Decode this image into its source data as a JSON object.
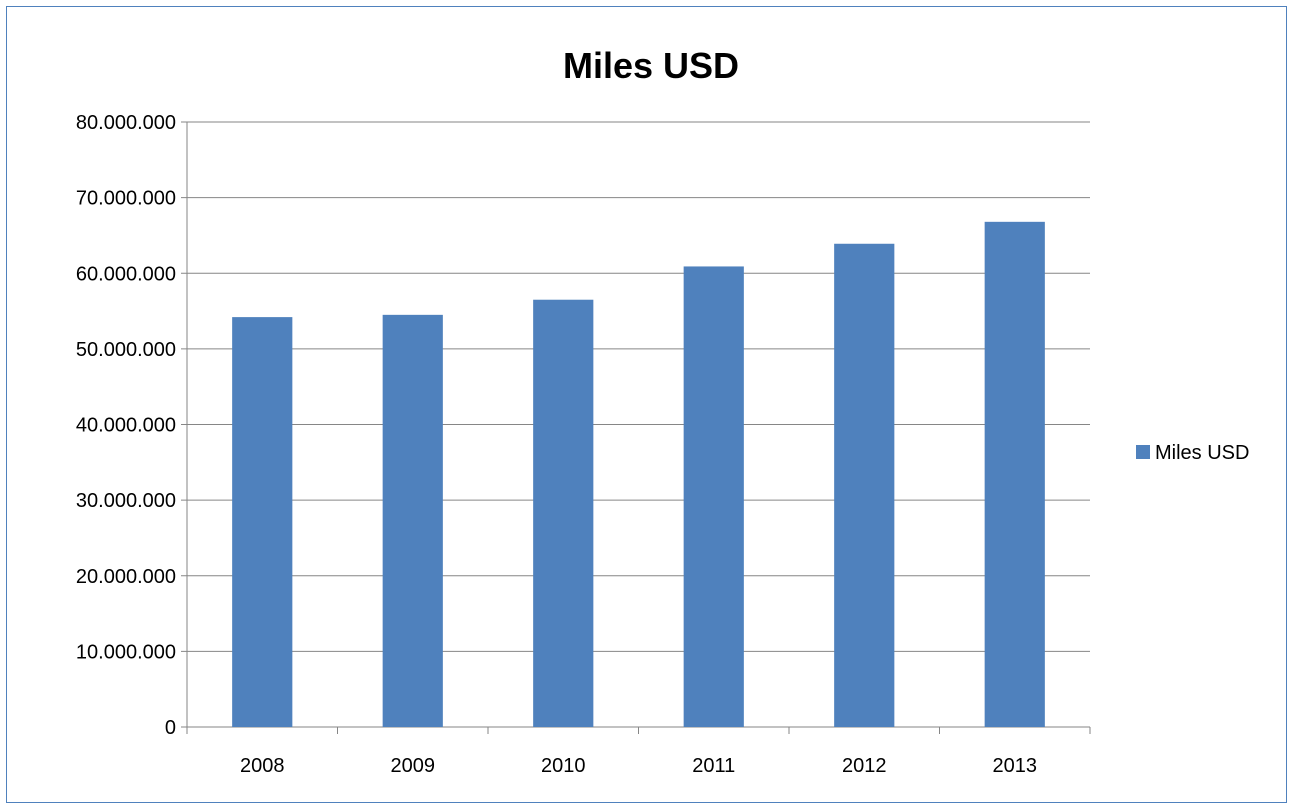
{
  "chart_data": {
    "type": "bar",
    "title": "Miles USD",
    "categories": [
      "2008",
      "2009",
      "2010",
      "2011",
      "2012",
      "2013"
    ],
    "series": [
      {
        "name": "Miles USD",
        "color": "#4f81bd",
        "values": [
          54200000,
          54500000,
          56500000,
          60900000,
          63900000,
          66800000
        ]
      }
    ],
    "xlabel": "",
    "ylabel": "",
    "ylim": [
      0,
      80000000
    ],
    "yticks": [
      0,
      10000000,
      20000000,
      30000000,
      40000000,
      50000000,
      60000000,
      70000000,
      80000000
    ],
    "ytick_labels": [
      "0",
      "10.000.000",
      "20.000.000",
      "30.000.000",
      "40.000.000",
      "50.000.000",
      "60.000.000",
      "70.000.000",
      "80.000.000"
    ],
    "grid": true,
    "legend_position": "right"
  }
}
